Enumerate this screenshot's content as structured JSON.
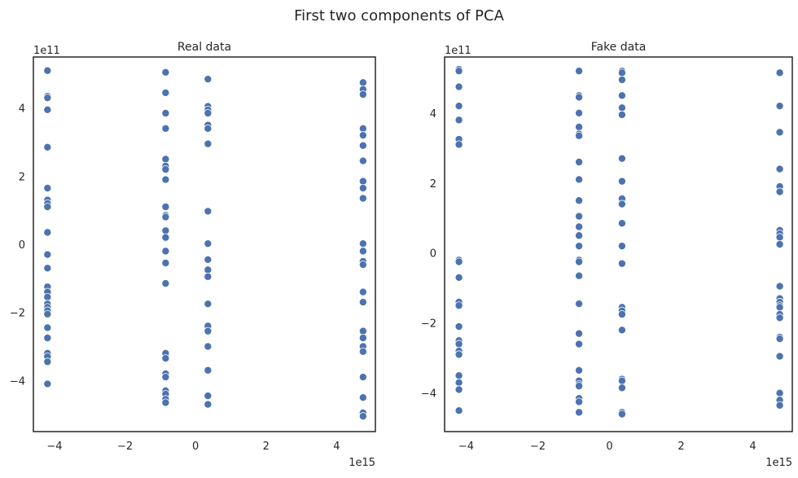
{
  "chart_data": {
    "suptitle": "First two components of PCA",
    "panels": [
      {
        "type": "scatter",
        "title": "Real data",
        "x_offset_label": "1e15",
        "y_offset_label": "1e11",
        "xlim": [
          -4.6,
          5.1
        ],
        "ylim": [
          -5.5,
          5.5
        ],
        "xticks": [
          -4,
          -2,
          0,
          2,
          4
        ],
        "xtick_labels": [
          "−4",
          "−2",
          "0",
          "2",
          "4"
        ],
        "yticks": [
          -4,
          -2,
          0,
          2,
          4
        ],
        "ytick_labels": [
          "−4",
          "−2",
          "0",
          "2",
          "4"
        ],
        "grid": false,
        "color": "#4c72b0",
        "columns": [
          {
            "x": -4.2,
            "y": [
              5.1,
              4.35,
              4.3,
              3.95,
              2.85,
              1.65,
              1.3,
              1.2,
              1.1,
              0.35,
              -0.3,
              -0.7,
              -1.25,
              -1.4,
              -1.55,
              -1.75,
              -1.85,
              -1.95,
              -2.05,
              -2.45,
              -2.75,
              -3.2,
              -3.3,
              -3.45,
              -4.1
            ]
          },
          {
            "x": -0.85,
            "y": [
              5.05,
              4.45,
              3.85,
              3.85,
              3.4,
              2.5,
              2.3,
              2.2,
              1.9,
              1.1,
              0.85,
              0.8,
              0.4,
              0.2,
              -0.2,
              -0.55,
              -1.15,
              -3.2,
              -3.35,
              -3.8,
              -3.9,
              -4.3,
              -4.4,
              -4.55,
              -4.65
            ]
          },
          {
            "x": 0.35,
            "y": [
              4.85,
              4.05,
              3.95,
              3.85,
              3.5,
              3.4,
              2.95,
              0.97,
              0.02,
              -0.45,
              -0.75,
              -0.95,
              -1.75,
              -2.4,
              -2.55,
              -3.0,
              -3.7,
              -4.45,
              -4.7
            ]
          },
          {
            "x": 4.75,
            "y": [
              4.75,
              4.55,
              4.4,
              3.4,
              3.2,
              2.9,
              2.45,
              1.85,
              1.65,
              1.35,
              0.02,
              -0.2,
              -0.5,
              -0.6,
              -1.4,
              -1.7,
              -2.55,
              -2.75,
              -3.0,
              -3.15,
              -3.9,
              -4.5,
              -4.95,
              -5.05
            ]
          }
        ]
      },
      {
        "type": "scatter",
        "title": "Fake data",
        "x_offset_label": "1e15",
        "y_offset_label": "1e11",
        "xlim": [
          -4.6,
          5.1
        ],
        "ylim": [
          -5.1,
          5.6
        ],
        "xticks": [
          -4,
          -2,
          0,
          2,
          4
        ],
        "xtick_labels": [
          "−4",
          "−2",
          "0",
          "2",
          "4"
        ],
        "yticks": [
          -4,
          -2,
          0,
          2,
          4
        ],
        "ytick_labels": [
          "−4",
          "−2",
          "0",
          "2",
          "4"
        ],
        "grid": false,
        "color": "#4c72b0",
        "columns": [
          {
            "x": -4.2,
            "y": [
              5.25,
              5.2,
              4.75,
              4.2,
              3.8,
              3.25,
              3.1,
              -0.2,
              -0.25,
              -0.7,
              -1.4,
              -1.5,
              -2.1,
              -2.5,
              -2.6,
              -2.8,
              -2.9,
              -3.5,
              -3.7,
              -3.9,
              -4.5
            ]
          },
          {
            "x": -0.85,
            "y": [
              5.2,
              4.5,
              4.45,
              4.0,
              3.6,
              3.4,
              3.35,
              2.6,
              2.1,
              1.5,
              1.05,
              0.75,
              0.5,
              0.2,
              -0.2,
              -0.25,
              -0.65,
              -1.45,
              -2.3,
              -2.6,
              -3.35,
              -3.65,
              -3.75,
              -3.8,
              -4.15,
              -4.25,
              -4.55
            ]
          },
          {
            "x": 0.35,
            "y": [
              5.2,
              5.15,
              4.95,
              4.5,
              4.15,
              3.95,
              2.7,
              2.05,
              1.55,
              1.4,
              0.85,
              0.2,
              -0.3,
              -1.55,
              -1.65,
              -1.75,
              -2.2,
              -3.6,
              -3.65,
              -3.85,
              -4.55,
              -4.6
            ]
          },
          {
            "x": 4.75,
            "y": [
              5.15,
              4.2,
              3.45,
              2.4,
              1.9,
              1.75,
              0.65,
              0.55,
              0.45,
              0.25,
              -0.95,
              -1.3,
              -1.4,
              -1.5,
              -1.55,
              -1.75,
              -1.85,
              -2.4,
              -2.45,
              -2.95,
              -4.0,
              -4.2,
              -4.35
            ]
          }
        ]
      }
    ]
  }
}
